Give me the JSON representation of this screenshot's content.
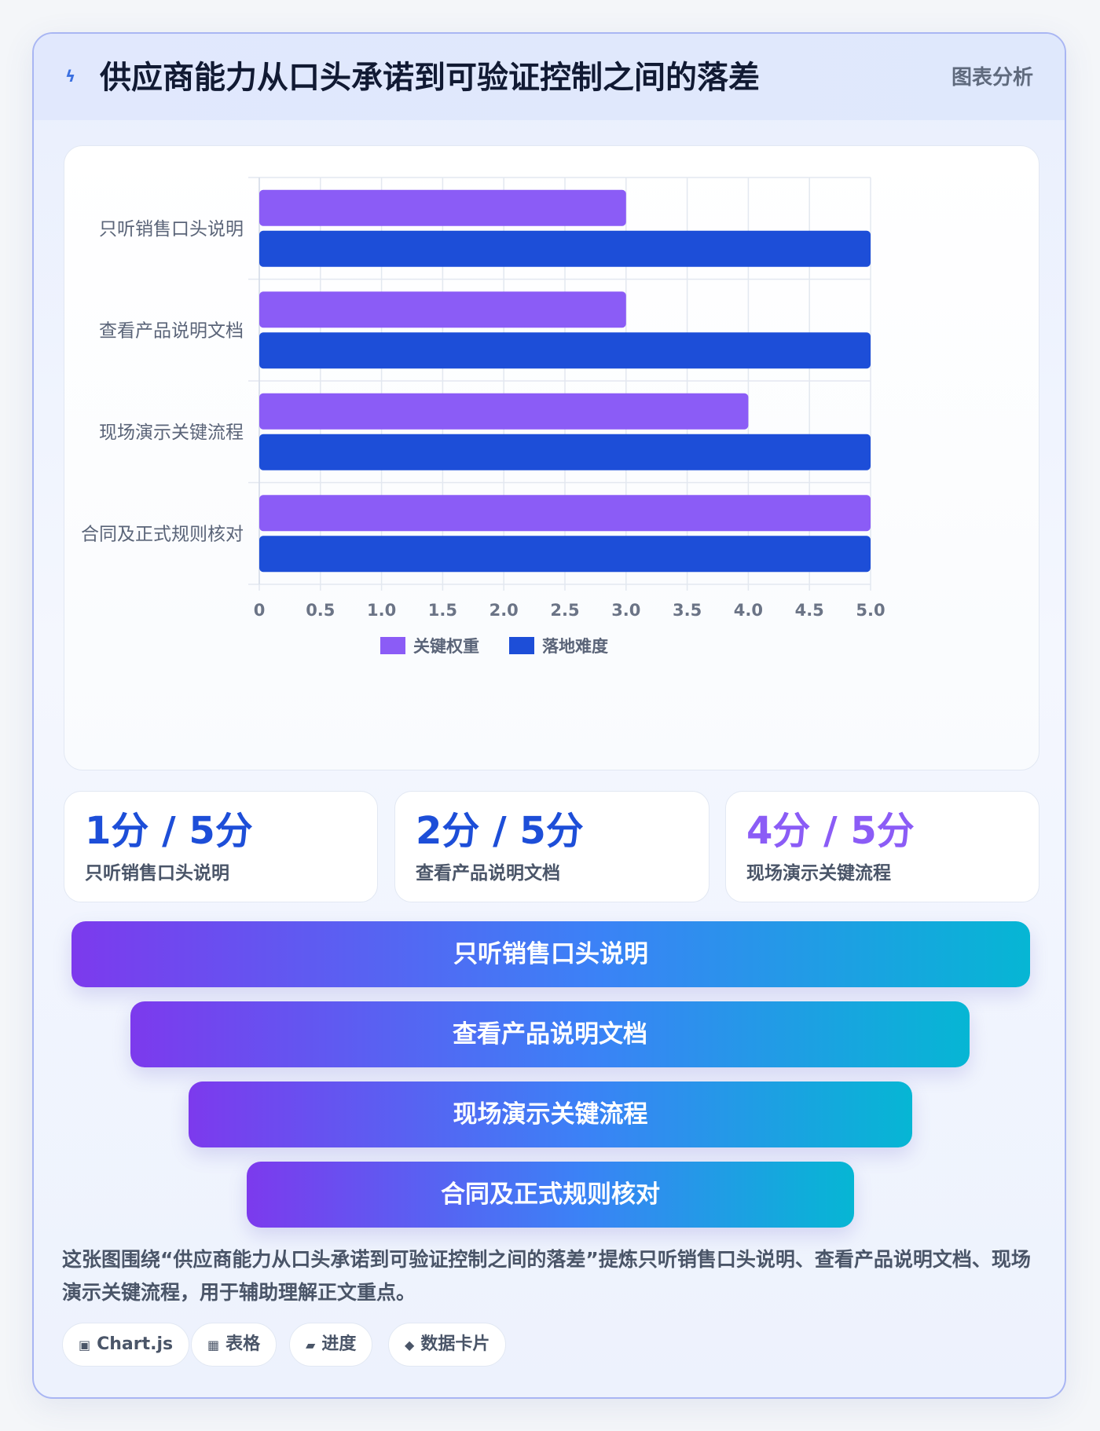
{
  "header": {
    "icon": "bolt-icon",
    "title": "供应商能力从口头承诺到可验证控制之间的落差",
    "tag": "图表分析"
  },
  "chart_data": {
    "type": "bar",
    "orientation": "horizontal",
    "categories": [
      "只听销售口头说明",
      "查看产品说明文档",
      "现场演示关键流程",
      "合同及正式规则核对"
    ],
    "series": [
      {
        "name": "关键权重",
        "values": [
          3,
          3,
          4,
          5
        ],
        "color": "#8b5cf6"
      },
      {
        "name": "落地难度",
        "values": [
          5,
          5,
          5,
          5
        ],
        "color": "#1d4ed8"
      }
    ],
    "xlim": [
      0,
      5
    ],
    "x_ticks": [
      "0",
      "0.5",
      "1.0",
      "1.5",
      "2.0",
      "2.5",
      "3.0",
      "3.5",
      "4.0",
      "4.5",
      "5.0"
    ],
    "grid": true,
    "legend_position": "bottom"
  },
  "kpis": [
    {
      "value": "1分 / 5分",
      "label": "只听销售口头说明",
      "color": "#1d4ed8"
    },
    {
      "value": "2分 / 5分",
      "label": "查看产品说明文档",
      "color": "#1d4ed8"
    },
    {
      "value": "4分 / 5分",
      "label": "现场演示关键流程",
      "color": "#8b5cf6"
    }
  ],
  "funnel": [
    "只听销售口头说明",
    "查看产品说明文档",
    "现场演示关键流程",
    "合同及正式规则核对"
  ],
  "description": "这张图围绕“供应商能力从口头承诺到可验证控制之间的落差”提炼只听销售口头说明、查看产品说明文档、现场演示关键流程，用于辅助理解正文重点。",
  "tags": [
    {
      "icon": "chart-box-icon",
      "glyph": "▣",
      "label": "Chart.js"
    },
    {
      "icon": "table-icon",
      "glyph": "▦",
      "label": "表格"
    },
    {
      "icon": "progress-icon",
      "glyph": "▰",
      "label": "进度"
    },
    {
      "icon": "diamond-icon",
      "glyph": "◆",
      "label": "数据卡片"
    }
  ]
}
